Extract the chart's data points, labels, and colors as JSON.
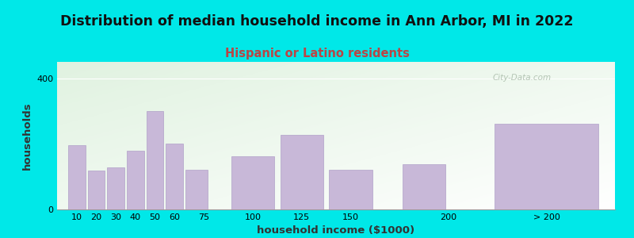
{
  "title": "Distribution of median household income in Ann Arbor, MI in 2022",
  "subtitle": "Hispanic or Latino residents",
  "xlabel": "household income ($1000)",
  "ylabel": "households",
  "categories": [
    "10",
    "20",
    "30",
    "40",
    "50",
    "60",
    "75",
    "100",
    "125",
    "150",
    "200",
    "> 200"
  ],
  "values": [
    195,
    118,
    128,
    180,
    300,
    200,
    122,
    163,
    228,
    122,
    138,
    262
  ],
  "bar_lefts": [
    5,
    15,
    25,
    35,
    45,
    55,
    65,
    87.5,
    112.5,
    137.5,
    175,
    220
  ],
  "bar_widths": [
    10,
    10,
    10,
    10,
    10,
    10,
    12.5,
    25,
    25,
    25,
    25,
    60
  ],
  "bar_color": "#c8b8d8",
  "bar_edge_color": "#b0a0c8",
  "background_outer": "#00e8e8",
  "background_plot_top_left": "#dff0d0",
  "background_plot_bottom_right": "#f5fff5",
  "title_fontsize": 12.5,
  "subtitle_fontsize": 10.5,
  "subtitle_color": "#bb4444",
  "axis_label_fontsize": 9.5,
  "tick_fontsize": 8,
  "ylim": [
    0,
    450
  ],
  "yticks": [
    0,
    400
  ],
  "xlim": [
    0,
    285
  ],
  "xtick_positions": [
    10,
    20,
    30,
    40,
    50,
    60,
    75,
    100,
    125,
    150,
    200,
    250
  ],
  "xtick_labels": [
    "10",
    "20",
    "30",
    "40",
    "50",
    "60",
    "75",
    "100",
    "125",
    "150",
    "200",
    "> 200"
  ],
  "watermark_text": "City-Data.com",
  "watermark_color": "#aabcaa"
}
